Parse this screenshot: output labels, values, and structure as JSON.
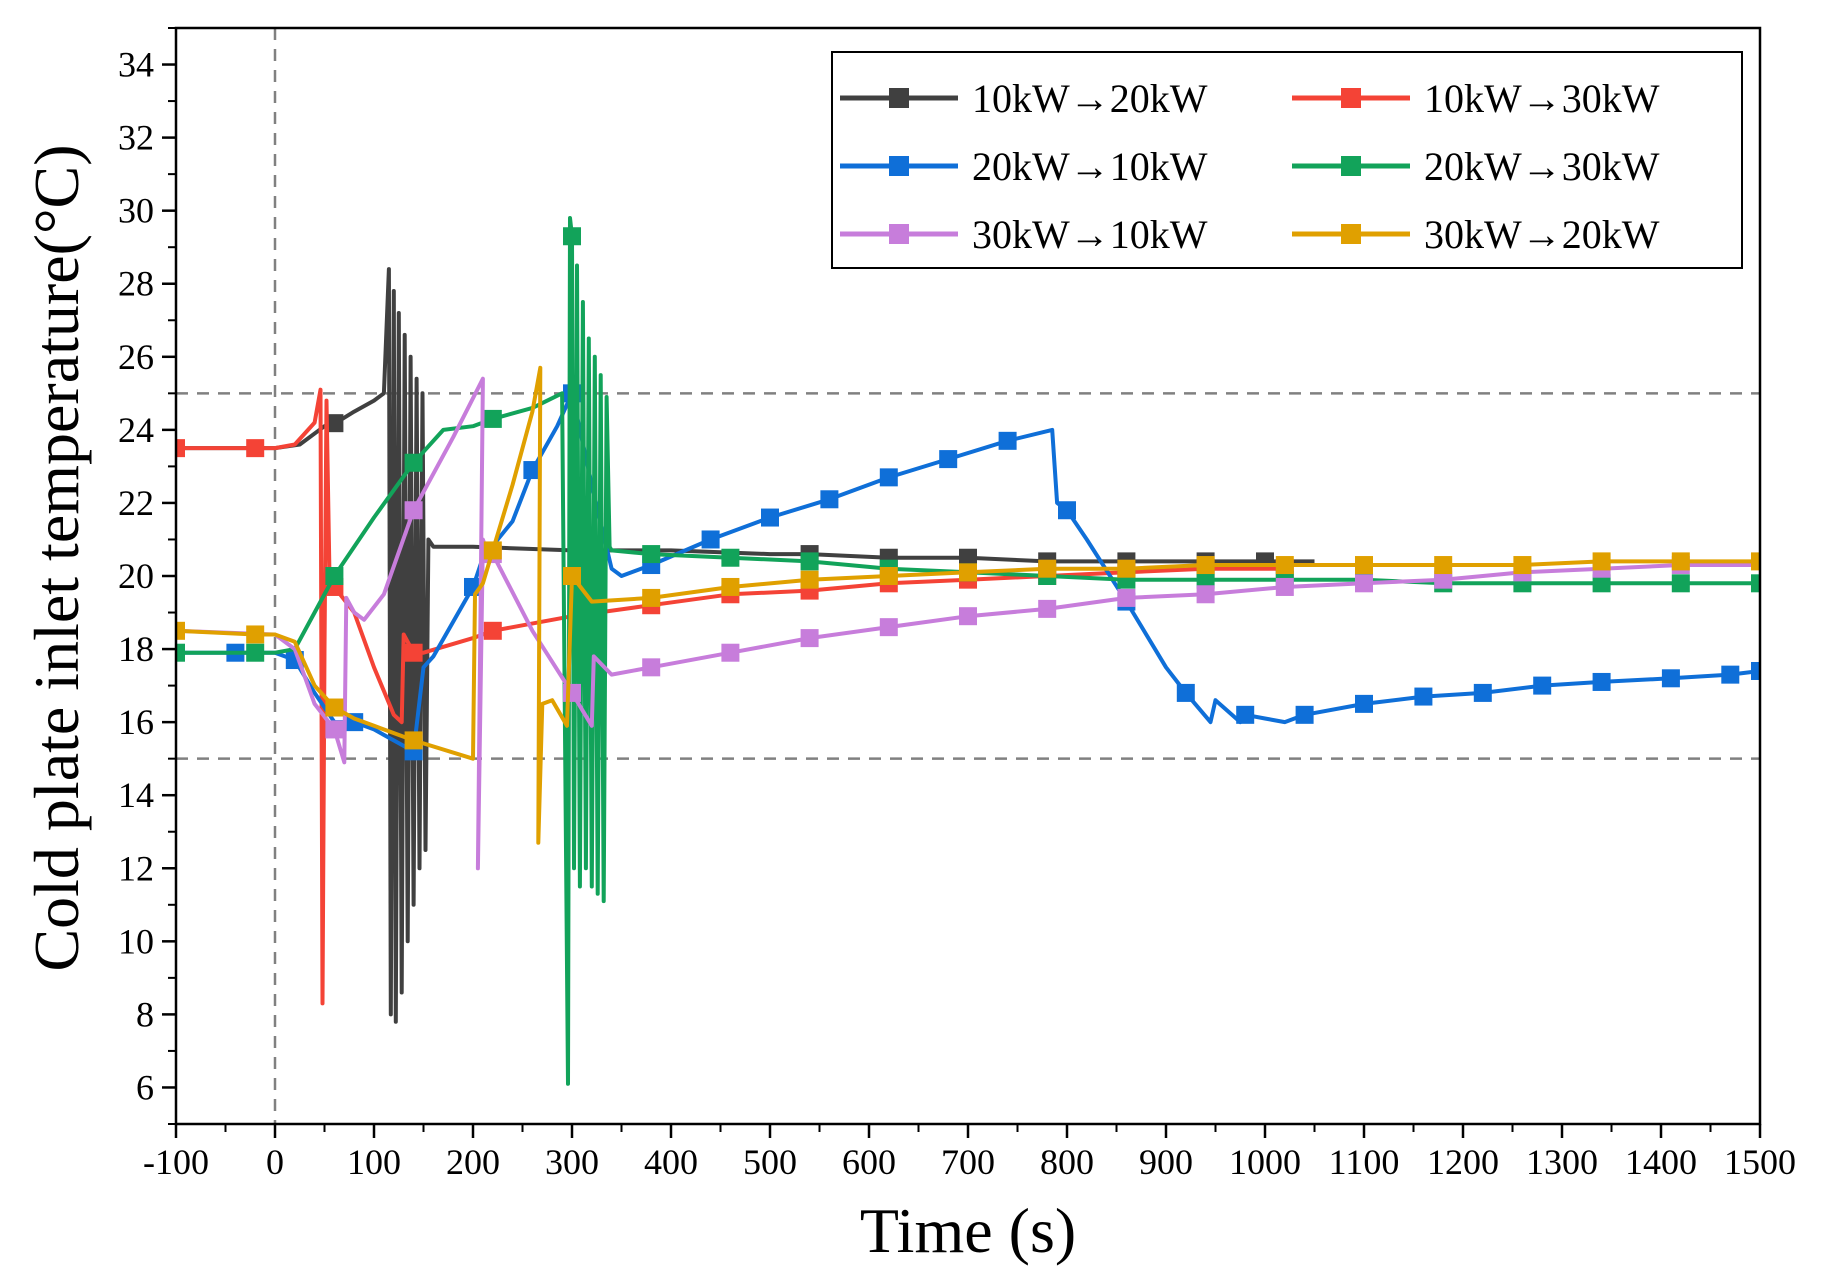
{
  "chart_data": {
    "type": "line",
    "title": "",
    "xlabel": "Time (s)",
    "ylabel": "Cold plate inlet temperature(°C)",
    "xlim": [
      -100,
      1500
    ],
    "ylim": [
      5,
      35
    ],
    "xticks": [
      -100,
      0,
      100,
      200,
      300,
      400,
      500,
      600,
      700,
      800,
      900,
      1000,
      1100,
      1200,
      1300,
      1400,
      1500
    ],
    "yticks": [
      6,
      8,
      10,
      12,
      14,
      16,
      18,
      20,
      22,
      24,
      26,
      28,
      30,
      32,
      34
    ],
    "reference_lines": {
      "vertical_x": [
        0
      ],
      "horizontal_y": [
        15,
        25
      ],
      "style": "dashed",
      "color": "#808080"
    },
    "grid": false,
    "legend_position": "top-right",
    "series": [
      {
        "name": "10kW→20kW",
        "color": "#404040",
        "points": [
          [
            -100,
            23.5
          ],
          [
            0,
            23.5
          ],
          [
            25,
            23.6
          ],
          [
            50,
            24.1
          ],
          [
            62,
            24.2
          ],
          [
            80,
            24.5
          ],
          [
            100,
            24.8
          ],
          [
            110,
            25.0
          ],
          [
            115,
            28.4
          ],
          [
            117,
            8.0
          ],
          [
            120,
            27.8
          ],
          [
            122,
            7.8
          ],
          [
            125,
            27.2
          ],
          [
            128,
            8.6
          ],
          [
            131,
            26.6
          ],
          [
            134,
            10.0
          ],
          [
            137,
            26.0
          ],
          [
            140,
            11.0
          ],
          [
            143,
            25.4
          ],
          [
            146,
            12.0
          ],
          [
            149,
            25.0
          ],
          [
            152,
            12.5
          ],
          [
            155,
            21.0
          ],
          [
            160,
            20.8
          ],
          [
            200,
            20.8
          ],
          [
            300,
            20.7
          ],
          [
            400,
            20.7
          ],
          [
            500,
            20.6
          ],
          [
            540,
            20.6
          ],
          [
            620,
            20.5
          ],
          [
            700,
            20.5
          ],
          [
            780,
            20.4
          ],
          [
            860,
            20.4
          ],
          [
            940,
            20.4
          ],
          [
            1000,
            20.4
          ],
          [
            1050,
            20.4
          ]
        ],
        "marker_x": [
          60,
          540,
          620,
          700,
          780,
          860,
          940,
          1000
        ]
      },
      {
        "name": "10kW→30kW",
        "color": "#F44336",
        "points": [
          [
            -100,
            23.5
          ],
          [
            -20,
            23.5
          ],
          [
            0,
            23.5
          ],
          [
            20,
            23.6
          ],
          [
            40,
            24.2
          ],
          [
            46,
            25.1
          ],
          [
            48,
            8.3
          ],
          [
            50,
            18.0
          ],
          [
            52,
            24.8
          ],
          [
            55,
            20.0
          ],
          [
            60,
            19.7
          ],
          [
            80,
            19.0
          ],
          [
            100,
            17.5
          ],
          [
            120,
            16.2
          ],
          [
            128,
            16.0
          ],
          [
            130,
            18.4
          ],
          [
            140,
            17.9
          ],
          [
            150,
            17.9
          ],
          [
            200,
            18.3
          ],
          [
            220,
            18.5
          ],
          [
            300,
            18.9
          ],
          [
            380,
            19.2
          ],
          [
            460,
            19.5
          ],
          [
            540,
            19.6
          ],
          [
            620,
            19.8
          ],
          [
            700,
            19.9
          ],
          [
            780,
            20.0
          ],
          [
            860,
            20.1
          ],
          [
            940,
            20.2
          ],
          [
            1020,
            20.2
          ]
        ],
        "marker_x": [
          -100,
          -20,
          60,
          140,
          220,
          380,
          460,
          540,
          620,
          700,
          780,
          860,
          940,
          1020
        ]
      },
      {
        "name": "20kW→10kW",
        "color": "#0F6FD8",
        "points": [
          [
            -100,
            17.9
          ],
          [
            -40,
            17.9
          ],
          [
            0,
            17.9
          ],
          [
            20,
            17.7
          ],
          [
            40,
            16.8
          ],
          [
            60,
            16.0
          ],
          [
            80,
            16.0
          ],
          [
            100,
            15.8
          ],
          [
            140,
            15.2
          ],
          [
            150,
            17.5
          ],
          [
            160,
            17.8
          ],
          [
            200,
            19.7
          ],
          [
            210,
            20.5
          ],
          [
            240,
            21.5
          ],
          [
            260,
            22.9
          ],
          [
            285,
            24.1
          ],
          [
            300,
            25.0
          ],
          [
            320,
            22.5
          ],
          [
            340,
            20.2
          ],
          [
            350,
            20.0
          ],
          [
            380,
            20.3
          ],
          [
            440,
            21.0
          ],
          [
            500,
            21.6
          ],
          [
            560,
            22.1
          ],
          [
            620,
            22.7
          ],
          [
            680,
            23.2
          ],
          [
            740,
            23.7
          ],
          [
            785,
            24.0
          ],
          [
            790,
            22.0
          ],
          [
            800,
            21.8
          ],
          [
            820,
            21.0
          ],
          [
            860,
            19.3
          ],
          [
            900,
            17.5
          ],
          [
            920,
            16.8
          ],
          [
            945,
            16.0
          ],
          [
            950,
            16.6
          ],
          [
            975,
            16.0
          ],
          [
            980,
            16.2
          ],
          [
            1000,
            16.1
          ],
          [
            1020,
            16.0
          ],
          [
            1040,
            16.2
          ],
          [
            1100,
            16.5
          ],
          [
            1160,
            16.7
          ],
          [
            1220,
            16.8
          ],
          [
            1280,
            17.0
          ],
          [
            1340,
            17.1
          ],
          [
            1410,
            17.2
          ],
          [
            1470,
            17.3
          ],
          [
            1500,
            17.4
          ]
        ],
        "marker_x": [
          -40,
          20,
          80,
          140,
          200,
          260,
          300,
          380,
          440,
          500,
          560,
          620,
          680,
          740,
          800,
          860,
          920,
          980,
          1040,
          1100,
          1160,
          1220,
          1280,
          1340,
          1410,
          1470,
          1500
        ]
      },
      {
        "name": "20kW→30kW",
        "color": "#12A35A",
        "points": [
          [
            -100,
            17.9
          ],
          [
            -20,
            17.9
          ],
          [
            0,
            17.9
          ],
          [
            20,
            18.0
          ],
          [
            40,
            19.0
          ],
          [
            60,
            20.0
          ],
          [
            100,
            21.6
          ],
          [
            140,
            23.1
          ],
          [
            170,
            24.0
          ],
          [
            200,
            24.1
          ],
          [
            220,
            24.3
          ],
          [
            260,
            24.6
          ],
          [
            290,
            25.0
          ],
          [
            296,
            6.1
          ],
          [
            298,
            29.8
          ],
          [
            300,
            29.3
          ],
          [
            302,
            12.0
          ],
          [
            305,
            28.5
          ],
          [
            308,
            11.5
          ],
          [
            311,
            27.5
          ],
          [
            314,
            12.0
          ],
          [
            317,
            26.5
          ],
          [
            320,
            11.5
          ],
          [
            323,
            26.0
          ],
          [
            326,
            11.3
          ],
          [
            329,
            25.5
          ],
          [
            332,
            11.1
          ],
          [
            335,
            24.9
          ],
          [
            338,
            20.8
          ],
          [
            340,
            20.7
          ],
          [
            380,
            20.6
          ],
          [
            460,
            20.5
          ],
          [
            540,
            20.4
          ],
          [
            620,
            20.2
          ],
          [
            700,
            20.1
          ],
          [
            780,
            20.0
          ],
          [
            860,
            19.9
          ],
          [
            940,
            19.9
          ],
          [
            1020,
            19.9
          ],
          [
            1100,
            19.9
          ],
          [
            1180,
            19.8
          ],
          [
            1260,
            19.8
          ],
          [
            1340,
            19.8
          ],
          [
            1420,
            19.8
          ],
          [
            1500,
            19.8
          ]
        ],
        "marker_x": [
          -100,
          -20,
          60,
          140,
          220,
          300,
          380,
          460,
          540,
          620,
          700,
          780,
          860,
          940,
          1020,
          1100,
          1180,
          1260,
          1340,
          1420,
          1500
        ]
      },
      {
        "name": "30kW→10kW",
        "color": "#C77DDB",
        "points": [
          [
            -100,
            18.5
          ],
          [
            0,
            18.4
          ],
          [
            20,
            18.0
          ],
          [
            40,
            16.5
          ],
          [
            60,
            15.8
          ],
          [
            70,
            14.9
          ],
          [
            72,
            19.4
          ],
          [
            80,
            19.0
          ],
          [
            90,
            18.8
          ],
          [
            110,
            19.5
          ],
          [
            140,
            21.8
          ],
          [
            180,
            23.8
          ],
          [
            210,
            25.4
          ],
          [
            205,
            12.0
          ],
          [
            210,
            21.0
          ],
          [
            215,
            20.6
          ],
          [
            220,
            20.6
          ],
          [
            260,
            18.5
          ],
          [
            300,
            16.8
          ],
          [
            320,
            15.9
          ],
          [
            322,
            17.8
          ],
          [
            340,
            17.3
          ],
          [
            380,
            17.5
          ],
          [
            460,
            17.9
          ],
          [
            540,
            18.3
          ],
          [
            620,
            18.6
          ],
          [
            700,
            18.9
          ],
          [
            780,
            19.1
          ],
          [
            860,
            19.4
          ],
          [
            940,
            19.5
          ],
          [
            1020,
            19.7
          ],
          [
            1100,
            19.8
          ],
          [
            1180,
            19.9
          ],
          [
            1260,
            20.1
          ],
          [
            1340,
            20.2
          ],
          [
            1420,
            20.3
          ],
          [
            1500,
            20.3
          ]
        ],
        "marker_x": [
          60,
          140,
          220,
          300,
          380,
          460,
          540,
          620,
          700,
          780,
          860,
          940,
          1020,
          1100,
          1180,
          1260,
          1340,
          1420
        ]
      },
      {
        "name": "30kW→20kW",
        "color": "#E0A000",
        "points": [
          [
            -100,
            18.5
          ],
          [
            -20,
            18.4
          ],
          [
            0,
            18.4
          ],
          [
            20,
            18.2
          ],
          [
            40,
            17.0
          ],
          [
            60,
            16.4
          ],
          [
            80,
            16.1
          ],
          [
            100,
            15.9
          ],
          [
            140,
            15.5
          ],
          [
            200,
            15.0
          ],
          [
            202,
            19.5
          ],
          [
            210,
            19.8
          ],
          [
            220,
            20.7
          ],
          [
            240,
            22.5
          ],
          [
            260,
            24.5
          ],
          [
            268,
            25.7
          ],
          [
            266,
            12.7
          ],
          [
            270,
            16.5
          ],
          [
            280,
            16.6
          ],
          [
            295,
            15.9
          ],
          [
            300,
            20.0
          ],
          [
            320,
            19.3
          ],
          [
            380,
            19.4
          ],
          [
            460,
            19.7
          ],
          [
            540,
            19.9
          ],
          [
            620,
            20.0
          ],
          [
            700,
            20.1
          ],
          [
            780,
            20.2
          ],
          [
            860,
            20.2
          ],
          [
            940,
            20.3
          ],
          [
            1020,
            20.3
          ],
          [
            1100,
            20.3
          ],
          [
            1180,
            20.3
          ],
          [
            1260,
            20.3
          ],
          [
            1340,
            20.4
          ],
          [
            1420,
            20.4
          ],
          [
            1500,
            20.4
          ]
        ],
        "marker_x": [
          -100,
          -20,
          60,
          140,
          220,
          300,
          380,
          460,
          540,
          620,
          700,
          780,
          860,
          940,
          1020,
          1100,
          1180,
          1260,
          1340,
          1420,
          1500
        ]
      }
    ]
  }
}
